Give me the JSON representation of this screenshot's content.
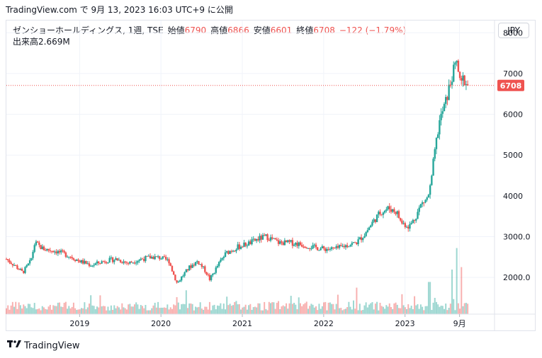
{
  "header": {
    "publish_line": "TradingView.com で 9月 13, 2023 16:03 UTC+9 に公開"
  },
  "legend": {
    "symbol": "ゼンショーホールディングス, 1週, TSE",
    "open_label": "始値",
    "open": "6790",
    "high_label": "高値",
    "high": "6866",
    "low_label": "安値",
    "low": "6601",
    "close_label": "終値",
    "close": "6708",
    "change": "−122 (−1.79%)",
    "volume_label": "出来高",
    "volume": "2.669M"
  },
  "currency_button": "JPY",
  "footer": {
    "brand": "TradingView"
  },
  "colors": {
    "up": "#26a69a",
    "down": "#ef5350",
    "grid": "#f0f3fa",
    "text": "#131722"
  },
  "chart_data": {
    "type": "candlestick",
    "interval": "weekly",
    "y_ticks": [
      "8000",
      "7000",
      "6000",
      "5000",
      "4000",
      "3000.0",
      "2000.0"
    ],
    "ylim": [
      1100,
      8300
    ],
    "x_ticks": [
      {
        "label": "2019",
        "year": 2019.0
      },
      {
        "label": "2020",
        "year": 2020.0
      },
      {
        "label": "2021",
        "year": 2021.0
      },
      {
        "label": "2022",
        "year": 2022.0
      },
      {
        "label": "2023",
        "year": 2023.0
      },
      {
        "label": "9月",
        "year": 2023.67
      }
    ],
    "xlim": [
      2018.1,
      2024.1
    ],
    "last_price": 6708,
    "last_price_label": "6708",
    "close_path": [
      [
        2018.1,
        2450
      ],
      [
        2018.2,
        2300
      ],
      [
        2018.3,
        2120
      ],
      [
        2018.4,
        2400
      ],
      [
        2018.45,
        2850
      ],
      [
        2018.55,
        2700
      ],
      [
        2018.7,
        2650
      ],
      [
        2018.85,
        2550
      ],
      [
        2019.0,
        2400
      ],
      [
        2019.15,
        2300
      ],
      [
        2019.3,
        2400
      ],
      [
        2019.45,
        2450
      ],
      [
        2019.6,
        2350
      ],
      [
        2019.75,
        2450
      ],
      [
        2019.9,
        2500
      ],
      [
        2020.0,
        2480
      ],
      [
        2020.1,
        2400
      ],
      [
        2020.15,
        2100
      ],
      [
        2020.2,
        1850
      ],
      [
        2020.25,
        2000
      ],
      [
        2020.35,
        2250
      ],
      [
        2020.45,
        2400
      ],
      [
        2020.55,
        2150
      ],
      [
        2020.6,
        1950
      ],
      [
        2020.7,
        2300
      ],
      [
        2020.8,
        2600
      ],
      [
        2020.95,
        2750
      ],
      [
        2021.1,
        2850
      ],
      [
        2021.2,
        2950
      ],
      [
        2021.3,
        3000
      ],
      [
        2021.45,
        2850
      ],
      [
        2021.6,
        2850
      ],
      [
        2021.75,
        2800
      ],
      [
        2021.85,
        2750
      ],
      [
        2022.0,
        2700
      ],
      [
        2022.15,
        2700
      ],
      [
        2022.3,
        2800
      ],
      [
        2022.4,
        2850
      ],
      [
        2022.5,
        3050
      ],
      [
        2022.6,
        3350
      ],
      [
        2022.7,
        3600
      ],
      [
        2022.8,
        3700
      ],
      [
        2022.9,
        3600
      ],
      [
        2022.95,
        3350
      ],
      [
        2023.05,
        3250
      ],
      [
        2023.12,
        3450
      ],
      [
        2023.2,
        3800
      ],
      [
        2023.28,
        3950
      ],
      [
        2023.32,
        4300
      ],
      [
        2023.35,
        4850
      ],
      [
        2023.42,
        5800
      ],
      [
        2023.5,
        6300
      ],
      [
        2023.58,
        6950
      ],
      [
        2023.64,
        7300
      ],
      [
        2023.68,
        6650
      ],
      [
        2023.72,
        6900
      ],
      [
        2023.77,
        6708
      ]
    ],
    "volume_spikes": [
      {
        "year": 2023.3,
        "volume": 1.3
      },
      {
        "year": 2023.58,
        "volume": 1.8
      },
      {
        "year": 2023.64,
        "volume": 2.669
      },
      {
        "year": 2023.7,
        "volume": 1.9
      }
    ]
  }
}
